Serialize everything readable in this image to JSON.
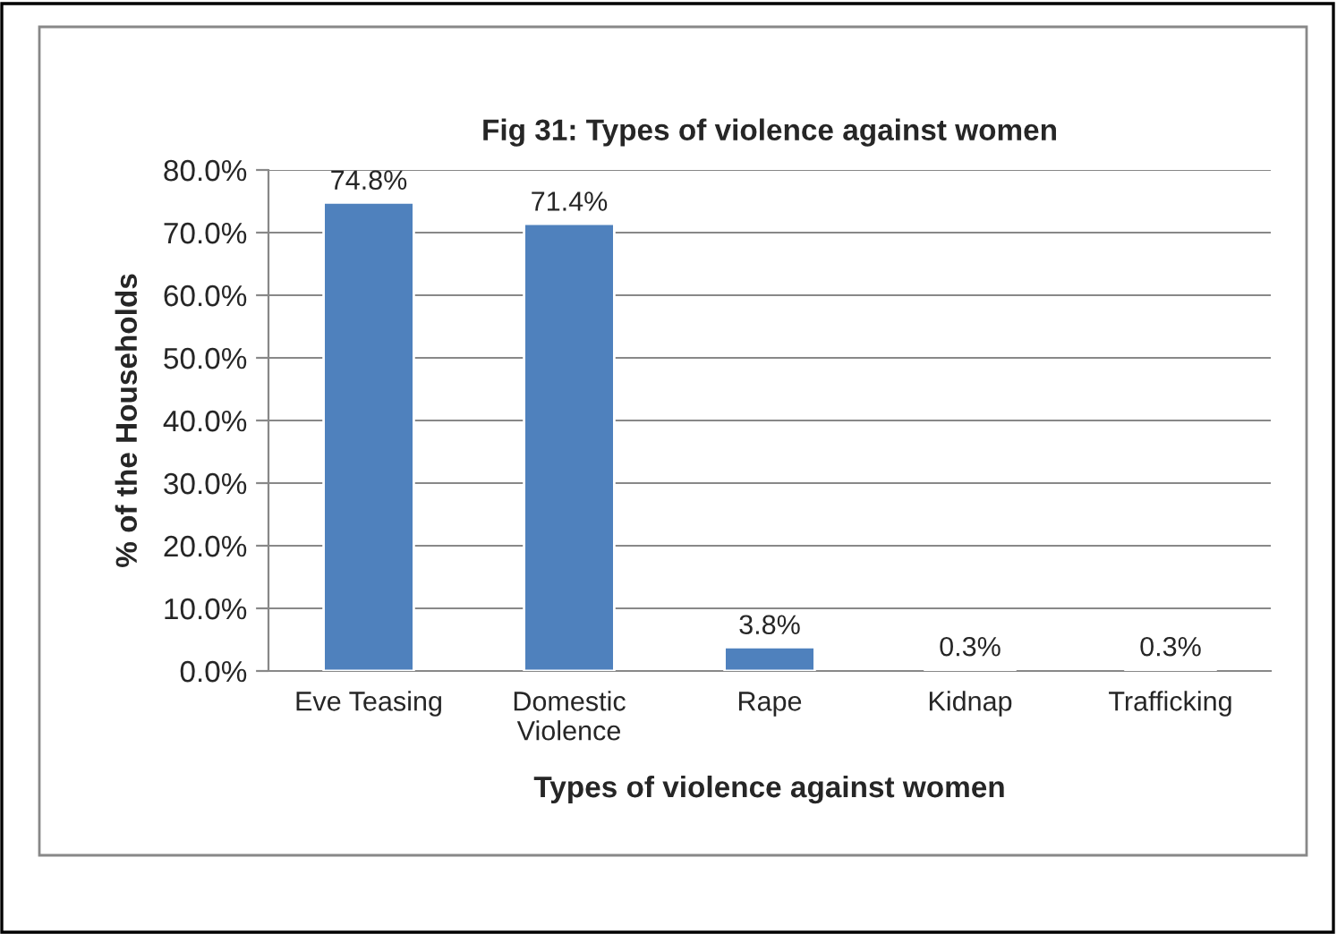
{
  "chart_data": {
    "type": "bar",
    "title": "Fig 31: Types of violence against women",
    "xlabel": "Types of violence against women",
    "ylabel": "% of the Households",
    "categories": [
      "Eve Teasing",
      "Domestic\nViolence",
      "Rape",
      "Kidnap",
      "Trafficking"
    ],
    "values": [
      74.8,
      71.4,
      3.8,
      0.3,
      0.3
    ],
    "value_labels": [
      "74.8%",
      "71.4%",
      "3.8%",
      "0.3%",
      "0.3%"
    ],
    "color": "#4f81bd",
    "ylim": [
      0,
      80
    ],
    "yticks": [
      {
        "value": 0,
        "label": "0.0%"
      },
      {
        "value": 10,
        "label": "10.0%"
      },
      {
        "value": 20,
        "label": "20.0%"
      },
      {
        "value": 30,
        "label": "30.0%"
      },
      {
        "value": 40,
        "label": "40.0%"
      },
      {
        "value": 50,
        "label": "50.0%"
      },
      {
        "value": 60,
        "label": "60.0%"
      },
      {
        "value": 70,
        "label": "70.0%"
      },
      {
        "value": 80,
        "label": "80.0%"
      }
    ],
    "grid": "y",
    "legend": false
  }
}
